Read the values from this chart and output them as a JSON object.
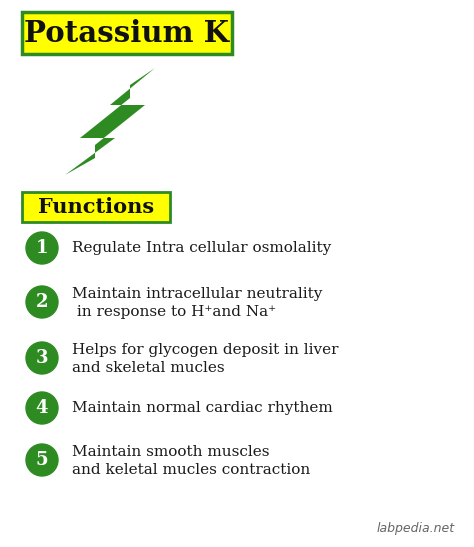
{
  "bg_color": "#ffffff",
  "title_text": "Potassium K",
  "title_bg": "#ffff00",
  "title_border": "#2e8b22",
  "functions_text": "Functions",
  "functions_bg": "#ffff00",
  "functions_border": "#2e8b22",
  "circle_color": "#2e8b22",
  "circle_text_color": "#ffffff",
  "text_color": "#1a1a1a",
  "items": [
    {
      "num": "1",
      "line1": "Regulate Intra cellular osmolality",
      "line2": ""
    },
    {
      "num": "2",
      "line1": "Maintain intracellular neutrality",
      "line2": " in response to H⁺and Na⁺"
    },
    {
      "num": "3",
      "line1": "Helps for glycogen deposit in liver",
      "line2": "and skeletal mucles"
    },
    {
      "num": "4",
      "line1": "Maintain normal cardiac rhythem",
      "line2": ""
    },
    {
      "num": "5",
      "line1": "Maintain smooth muscles",
      "line2": "and keletal mucles contraction"
    }
  ],
  "watermark": "labpedia.net",
  "arrow_color": "#2e8b22",
  "figsize": [
    4.74,
    5.47
  ],
  "dpi": 100
}
